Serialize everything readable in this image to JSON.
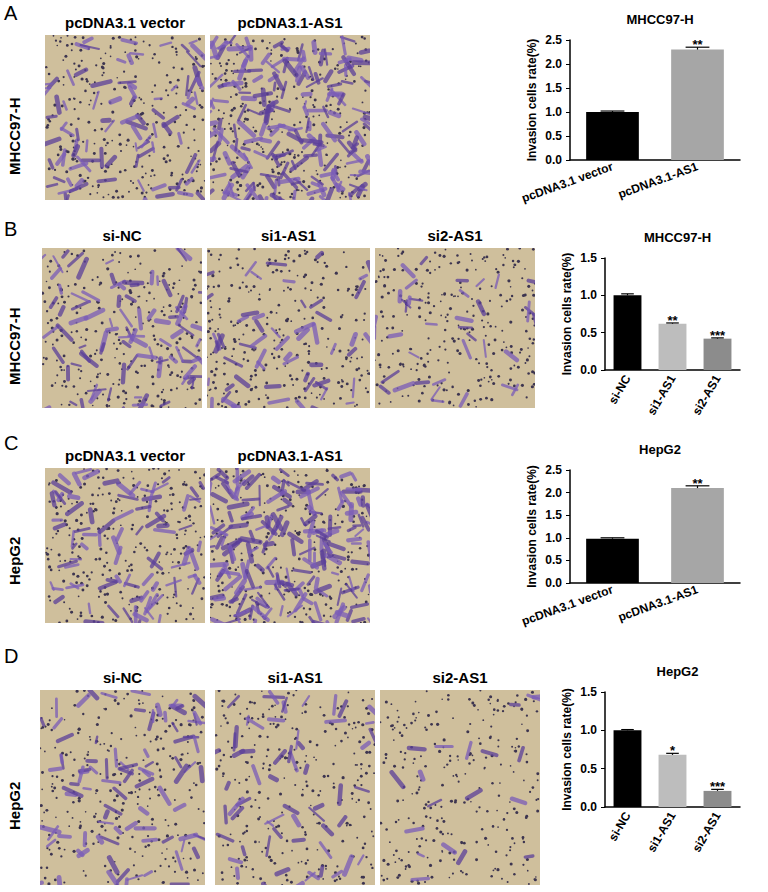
{
  "chart_data": [
    {
      "type": "bar",
      "panel": "A",
      "row_label": "MHCC97-H",
      "image_labels": [
        "pcDNA3.1 vector",
        "pcDNA3.1-AS1"
      ],
      "title": "MHCC97-H",
      "ylabel": "Invasion cells rate(%)",
      "categories": [
        "pcDNA3.1 vector",
        "pcDNA3.1-AS1"
      ],
      "values": [
        1.0,
        2.3
      ],
      "errors": [
        0.02,
        0.05
      ],
      "colors": [
        "#000000",
        "#a6a6a6"
      ],
      "annotations": [
        {
          "category": "pcDNA3.1-AS1",
          "text": "**"
        }
      ],
      "ylim": [
        0,
        2.5
      ],
      "yticks": [
        {
          "value": 0,
          "label": "0.0"
        },
        0.5,
        {
          "value": 1,
          "label": "1.0"
        },
        1.5,
        {
          "value": 2,
          "label": "2.0"
        },
        2.5
      ]
    },
    {
      "type": "bar",
      "panel": "B",
      "row_label": "MHCC97-H",
      "image_labels": [
        "si-NC",
        "si1-AS1",
        "si2-AS1"
      ],
      "title": "MHCC97-H",
      "ylabel": "Invasion cells rate(%)",
      "categories": [
        "si-NC",
        "si1-AS1",
        "si2-AS1"
      ],
      "values": [
        1.0,
        0.62,
        0.42
      ],
      "errors": [
        0.02,
        0.01,
        0.01
      ],
      "colors": [
        "#000000",
        "#bdbdbd",
        "#8c8c8c"
      ],
      "annotations": [
        {
          "category": "si1-AS1",
          "text": "**"
        },
        {
          "category": "si2-AS1",
          "text": "***"
        }
      ],
      "ylim": [
        0,
        1.5
      ],
      "yticks": [
        {
          "value": 0,
          "label": "0.0"
        },
        0.5,
        {
          "value": 1,
          "label": "1.0"
        },
        1.5
      ]
    },
    {
      "type": "bar",
      "panel": "C",
      "row_label": "HepG2",
      "image_labels": [
        "pcDNA3.1 vector",
        "pcDNA3.1-AS1"
      ],
      "title": "HepG2",
      "ylabel": "Invasion cells rate(%)",
      "categories": [
        "pcDNA3.1 vector",
        "pcDNA3.1-AS1"
      ],
      "values": [
        0.98,
        2.1
      ],
      "errors": [
        0.02,
        0.05
      ],
      "colors": [
        "#000000",
        "#a6a6a6"
      ],
      "annotations": [
        {
          "category": "pcDNA3.1-AS1",
          "text": "**"
        }
      ],
      "ylim": [
        0,
        2.5
      ],
      "yticks": [
        {
          "value": 0,
          "label": "0.0"
        },
        0.5,
        {
          "value": 1,
          "label": "1.0"
        },
        1.5,
        {
          "value": 2,
          "label": "2.0"
        },
        2.5
      ]
    },
    {
      "type": "bar",
      "panel": "D",
      "row_label": "HepG2",
      "image_labels": [
        "si-NC",
        "si1-AS1",
        "si2-AS1"
      ],
      "title": "HepG2",
      "ylabel": "Invasion cells rate(%)",
      "categories": [
        "si-NC",
        "si1-AS1",
        "si2-AS1"
      ],
      "values": [
        1.0,
        0.68,
        0.21
      ],
      "errors": [
        0.01,
        0.02,
        0.02
      ],
      "colors": [
        "#000000",
        "#bdbdbd",
        "#8c8c8c"
      ],
      "annotations": [
        {
          "category": "si1-AS1",
          "text": "*"
        },
        {
          "category": "si2-AS1",
          "text": "***"
        }
      ],
      "ylim": [
        0,
        1.5
      ],
      "yticks": [
        {
          "value": 0,
          "label": "0.0"
        },
        0.5,
        {
          "value": 1,
          "label": "1.0"
        },
        1.5
      ]
    }
  ]
}
